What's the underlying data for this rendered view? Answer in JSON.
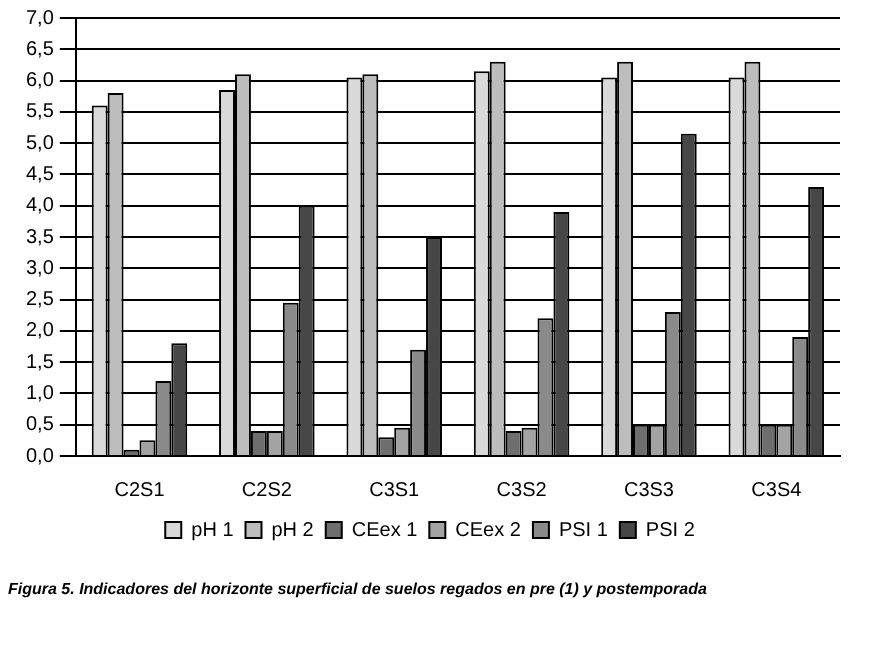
{
  "chart_data": {
    "type": "bar",
    "categories": [
      "C2S1",
      "C2S2",
      "C3S1",
      "C3S2",
      "C3S3",
      "C3S4"
    ],
    "series": [
      {
        "name": "pH 1",
        "color": "#d9d9d9",
        "values": [
          5.6,
          5.85,
          6.05,
          6.15,
          6.05,
          6.05
        ]
      },
      {
        "name": "pH 2",
        "color": "#bdbdbd",
        "values": [
          5.8,
          6.1,
          6.1,
          6.3,
          6.3,
          6.3
        ]
      },
      {
        "name": "CEex 1",
        "color": "#6e6e6e",
        "values": [
          0.1,
          0.4,
          0.3,
          0.4,
          0.5,
          0.5
        ]
      },
      {
        "name": "CEex 2",
        "color": "#a3a3a3",
        "values": [
          0.25,
          0.4,
          0.45,
          0.45,
          0.5,
          0.5
        ]
      },
      {
        "name": "PSI 1",
        "color": "#8a8a8a",
        "values": [
          1.2,
          2.45,
          1.7,
          2.2,
          2.3,
          1.9
        ]
      },
      {
        "name": "PSI 2",
        "color": "#474747",
        "values": [
          1.8,
          4.0,
          3.5,
          3.9,
          5.15,
          4.3
        ]
      }
    ],
    "ylim": [
      0,
      7
    ],
    "yticks": [
      {
        "value": 0,
        "label": "0,0"
      },
      {
        "value": 0.5,
        "label": "0,5"
      },
      {
        "value": 1,
        "label": "1,0"
      },
      {
        "value": 1.5,
        "label": "1,5"
      },
      {
        "value": 2,
        "label": "2,0"
      },
      {
        "value": 2.5,
        "label": "2,5"
      },
      {
        "value": 3,
        "label": "3,0"
      },
      {
        "value": 3.5,
        "label": "3,5"
      },
      {
        "value": 4,
        "label": "4,0"
      },
      {
        "value": 4.5,
        "label": "4,5"
      },
      {
        "value": 5,
        "label": "5,0"
      },
      {
        "value": 5.5,
        "label": "5,5"
      },
      {
        "value": 6,
        "label": "6,0"
      },
      {
        "value": 6.5,
        "label": "6,5"
      },
      {
        "value": 7,
        "label": "7,0"
      }
    ],
    "grid": "y",
    "legend": "bottom",
    "annotations": [
      "Figura 5. Indicadores del horizonte superficial de suelos regados en pre (1) y postemporada"
    ]
  }
}
